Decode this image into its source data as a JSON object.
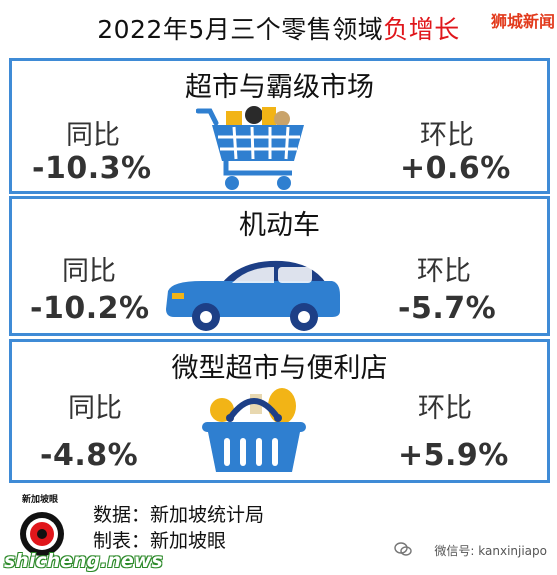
{
  "header": {
    "title_main": "2022年5月三个零售领域",
    "title_highlight": "负增长",
    "brand_tag": "狮城新闻"
  },
  "panels": [
    {
      "title": "超市与霸级市场",
      "yoy_label": "同比",
      "yoy_value": "-10.3%",
      "mom_label": "环比",
      "mom_value": "+0.6%",
      "icon": "shopping-cart-icon"
    },
    {
      "title": "机动车",
      "yoy_label": "同比",
      "yoy_value": "-10.2%",
      "mom_label": "环比",
      "mom_value": "-5.7%",
      "icon": "car-icon"
    },
    {
      "title": "微型超市与便利店",
      "yoy_label": "同比",
      "yoy_value": "-4.8%",
      "mom_label": "环比",
      "mom_value": "+5.9%",
      "icon": "shopping-basket-icon"
    }
  ],
  "footer": {
    "logo_text": "新加坡眼",
    "source": "数据：新加坡统计局",
    "maker": "制表：新加坡眼",
    "watermark_site": "shicheng.news",
    "wechat": "微信号: kanxinjiapo"
  },
  "colors": {
    "panel_border": "#3f8bd6",
    "highlight": "#e0161b",
    "icon_blue": "#2f7fd0",
    "icon_yellow": "#f2b416"
  }
}
